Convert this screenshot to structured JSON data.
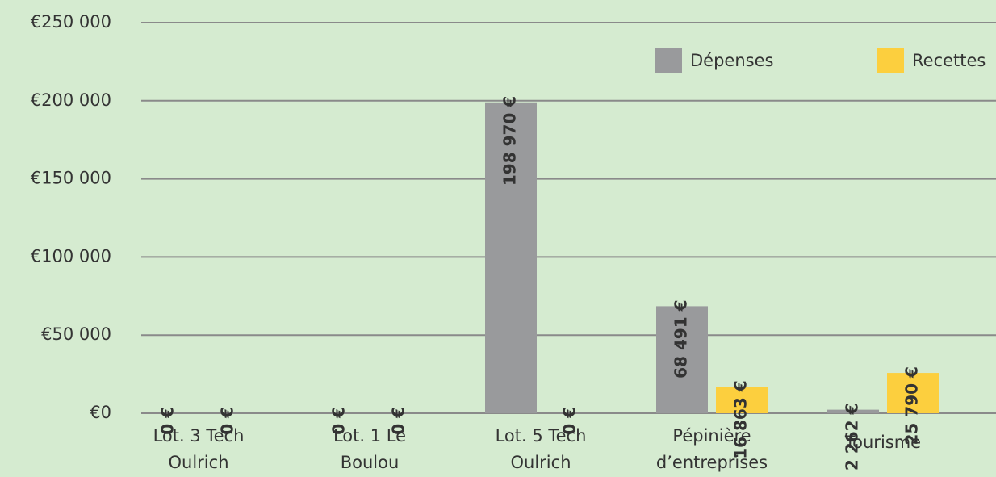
{
  "chart_data": {
    "type": "bar",
    "categories": [
      [
        "Lot. 3 Tech",
        "Oulrich"
      ],
      [
        "Lot. 1 Le",
        "Boulou"
      ],
      [
        "Lot. 5 Tech",
        "Oulrich"
      ],
      [
        "Pépinière",
        "d’entreprises"
      ],
      [
        "Tourisme"
      ]
    ],
    "series": [
      {
        "name": "Dépenses",
        "color": "#999a9c",
        "values": [
          0,
          0,
          198970,
          68491,
          2262
        ],
        "value_labels": [
          "0 €",
          "0 €",
          "198 970 €",
          "68 491 €",
          "2 262 €"
        ]
      },
      {
        "name": "Recettes",
        "color": "#fccf3e",
        "values": [
          0,
          0,
          0,
          16863,
          25790
        ],
        "value_labels": [
          "0 €",
          "0 €",
          "0 €",
          "16 863 €",
          "25 790 €"
        ]
      }
    ],
    "ylim": [
      0,
      250000
    ],
    "yticks": [
      {
        "value": 0,
        "label": "€0"
      },
      {
        "value": 50000,
        "label": "€50 000"
      },
      {
        "value": 100000,
        "label": "€100 000"
      },
      {
        "value": 150000,
        "label": "€150 000"
      },
      {
        "value": 200000,
        "label": "€200 000"
      },
      {
        "value": 250000,
        "label": "€250 000"
      }
    ],
    "grid": true,
    "legend": "top-right"
  }
}
